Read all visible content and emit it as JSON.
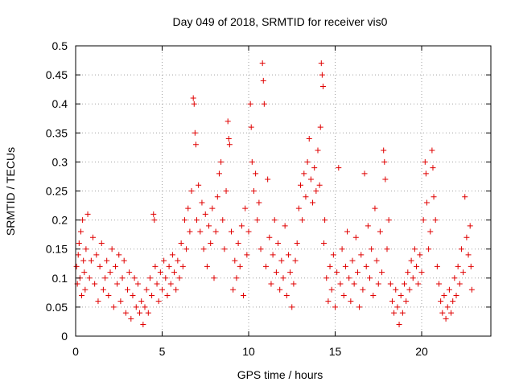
{
  "chart_data": {
    "type": "scatter",
    "title": "Day 049 of 2018, SRMTID for receiver vis0",
    "xlabel": "GPS time / hours",
    "ylabel": "SRMTID / TECUs",
    "xlim": [
      0,
      24
    ],
    "ylim": [
      0,
      0.5
    ],
    "x_ticks": [
      0,
      5,
      10,
      15,
      20
    ],
    "x_tick_labels": [
      "0",
      "5",
      "10",
      "15",
      "20"
    ],
    "y_ticks": [
      0,
      0.05,
      0.1,
      0.15,
      0.2,
      0.25,
      0.3,
      0.35,
      0.4,
      0.45,
      0.5
    ],
    "y_tick_labels": [
      "0",
      "0.05",
      "0.1",
      "0.15",
      "0.2",
      "0.25",
      "0.3",
      "0.35",
      "0.4",
      "0.45",
      "0.5"
    ],
    "grid": true,
    "marker": "+",
    "color": "#e00000",
    "series": [
      {
        "values": [
          [
            0.05,
            0.12
          ],
          [
            0.1,
            0.09
          ],
          [
            0.15,
            0.14
          ],
          [
            0.2,
            0.16
          ],
          [
            0.25,
            0.1
          ],
          [
            0.3,
            0.18
          ],
          [
            0.35,
            0.07
          ],
          [
            0.4,
            0.2
          ],
          [
            0.45,
            0.13
          ],
          [
            0.5,
            0.11
          ],
          [
            0.55,
            0.08
          ],
          [
            0.6,
            0.15
          ],
          [
            0.7,
            0.21
          ],
          [
            0.8,
            0.1
          ],
          [
            0.9,
            0.13
          ],
          [
            1.0,
            0.17
          ],
          [
            1.1,
            0.09
          ],
          [
            1.2,
            0.14
          ],
          [
            1.3,
            0.06
          ],
          [
            1.4,
            0.12
          ],
          [
            1.5,
            0.16
          ],
          [
            1.6,
            0.08
          ],
          [
            1.7,
            0.1
          ],
          [
            1.8,
            0.13
          ],
          [
            1.9,
            0.07
          ],
          [
            2.0,
            0.11
          ],
          [
            2.1,
            0.15
          ],
          [
            2.2,
            0.05
          ],
          [
            2.3,
            0.12
          ],
          [
            2.4,
            0.09
          ],
          [
            2.5,
            0.14
          ],
          [
            2.6,
            0.06
          ],
          [
            2.7,
            0.1
          ],
          [
            2.8,
            0.13
          ],
          [
            2.9,
            0.04
          ],
          [
            3.0,
            0.08
          ],
          [
            3.1,
            0.11
          ],
          [
            3.2,
            0.03
          ],
          [
            3.3,
            0.07
          ],
          [
            3.4,
            0.1
          ],
          [
            3.5,
            0.05
          ],
          [
            3.6,
            0.09
          ],
          [
            3.7,
            0.04
          ],
          [
            3.8,
            0.06
          ],
          [
            3.9,
            0.02
          ],
          [
            4.0,
            0.05
          ],
          [
            4.1,
            0.08
          ],
          [
            4.2,
            0.04
          ],
          [
            4.3,
            0.1
          ],
          [
            4.4,
            0.07
          ],
          [
            4.5,
            0.21
          ],
          [
            4.55,
            0.2
          ],
          [
            4.6,
            0.12
          ],
          [
            4.7,
            0.09
          ],
          [
            4.8,
            0.06
          ],
          [
            4.9,
            0.11
          ],
          [
            5.0,
            0.08
          ],
          [
            5.1,
            0.13
          ],
          [
            5.2,
            0.1
          ],
          [
            5.3,
            0.07
          ],
          [
            5.4,
            0.12
          ],
          [
            5.5,
            0.09
          ],
          [
            5.6,
            0.14
          ],
          [
            5.7,
            0.11
          ],
          [
            5.8,
            0.08
          ],
          [
            5.9,
            0.13
          ],
          [
            6.0,
            0.1
          ],
          [
            6.1,
            0.16
          ],
          [
            6.2,
            0.12
          ],
          [
            6.3,
            0.2
          ],
          [
            6.4,
            0.15
          ],
          [
            6.5,
            0.22
          ],
          [
            6.6,
            0.18
          ],
          [
            6.7,
            0.25
          ],
          [
            6.8,
            0.41
          ],
          [
            6.85,
            0.4
          ],
          [
            6.9,
            0.35
          ],
          [
            6.95,
            0.33
          ],
          [
            7.0,
            0.2
          ],
          [
            7.1,
            0.26
          ],
          [
            7.2,
            0.18
          ],
          [
            7.3,
            0.23
          ],
          [
            7.4,
            0.15
          ],
          [
            7.5,
            0.21
          ],
          [
            7.6,
            0.12
          ],
          [
            7.7,
            0.19
          ],
          [
            7.8,
            0.16
          ],
          [
            7.9,
            0.22
          ],
          [
            8.0,
            0.1
          ],
          [
            8.1,
            0.18
          ],
          [
            8.2,
            0.24
          ],
          [
            8.3,
            0.28
          ],
          [
            8.4,
            0.3
          ],
          [
            8.5,
            0.2
          ],
          [
            8.6,
            0.15
          ],
          [
            8.7,
            0.25
          ],
          [
            8.8,
            0.37
          ],
          [
            8.85,
            0.34
          ],
          [
            8.9,
            0.33
          ],
          [
            9.0,
            0.18
          ],
          [
            9.1,
            0.08
          ],
          [
            9.2,
            0.13
          ],
          [
            9.3,
            0.1
          ],
          [
            9.4,
            0.16
          ],
          [
            9.5,
            0.12
          ],
          [
            9.6,
            0.19
          ],
          [
            9.7,
            0.07
          ],
          [
            9.8,
            0.22
          ],
          [
            9.9,
            0.14
          ],
          [
            10.0,
            0.18
          ],
          [
            10.1,
            0.4
          ],
          [
            10.15,
            0.36
          ],
          [
            10.2,
            0.3
          ],
          [
            10.3,
            0.25
          ],
          [
            10.4,
            0.28
          ],
          [
            10.5,
            0.2
          ],
          [
            10.6,
            0.23
          ],
          [
            10.7,
            0.15
          ],
          [
            10.8,
            0.47
          ],
          [
            10.85,
            0.44
          ],
          [
            10.9,
            0.4
          ],
          [
            11.0,
            0.12
          ],
          [
            11.1,
            0.27
          ],
          [
            11.2,
            0.17
          ],
          [
            11.3,
            0.09
          ],
          [
            11.4,
            0.14
          ],
          [
            11.5,
            0.2
          ],
          [
            11.6,
            0.11
          ],
          [
            11.7,
            0.16
          ],
          [
            11.8,
            0.08
          ],
          [
            11.9,
            0.13
          ],
          [
            12.0,
            0.1
          ],
          [
            12.1,
            0.19
          ],
          [
            12.2,
            0.07
          ],
          [
            12.3,
            0.14
          ],
          [
            12.4,
            0.11
          ],
          [
            12.5,
            0.05
          ],
          [
            12.6,
            0.09
          ],
          [
            12.7,
            0.13
          ],
          [
            12.8,
            0.16
          ],
          [
            12.9,
            0.22
          ],
          [
            13.0,
            0.26
          ],
          [
            13.1,
            0.2
          ],
          [
            13.2,
            0.28
          ],
          [
            13.3,
            0.24
          ],
          [
            13.4,
            0.3
          ],
          [
            13.5,
            0.34
          ],
          [
            13.6,
            0.27
          ],
          [
            13.7,
            0.23
          ],
          [
            13.8,
            0.29
          ],
          [
            13.9,
            0.25
          ],
          [
            14.0,
            0.32
          ],
          [
            14.1,
            0.26
          ],
          [
            14.15,
            0.36
          ],
          [
            14.2,
            0.47
          ],
          [
            14.25,
            0.45
          ],
          [
            14.3,
            0.43
          ],
          [
            14.35,
            0.16
          ],
          [
            14.4,
            0.2
          ],
          [
            14.5,
            0.1
          ],
          [
            14.6,
            0.06
          ],
          [
            14.7,
            0.12
          ],
          [
            14.8,
            0.08
          ],
          [
            14.9,
            0.14
          ],
          [
            15.0,
            0.05
          ],
          [
            15.1,
            0.11
          ],
          [
            15.2,
            0.29
          ],
          [
            15.3,
            0.09
          ],
          [
            15.4,
            0.15
          ],
          [
            15.5,
            0.07
          ],
          [
            15.6,
            0.12
          ],
          [
            15.7,
            0.18
          ],
          [
            15.8,
            0.1
          ],
          [
            15.9,
            0.06
          ],
          [
            16.0,
            0.13
          ],
          [
            16.1,
            0.09
          ],
          [
            16.2,
            0.17
          ],
          [
            16.3,
            0.11
          ],
          [
            16.4,
            0.05
          ],
          [
            16.5,
            0.14
          ],
          [
            16.6,
            0.08
          ],
          [
            16.7,
            0.28
          ],
          [
            16.8,
            0.12
          ],
          [
            16.9,
            0.19
          ],
          [
            17.0,
            0.1
          ],
          [
            17.1,
            0.15
          ],
          [
            17.2,
            0.07
          ],
          [
            17.3,
            0.22
          ],
          [
            17.4,
            0.13
          ],
          [
            17.5,
            0.09
          ],
          [
            17.6,
            0.18
          ],
          [
            17.7,
            0.11
          ],
          [
            17.8,
            0.32
          ],
          [
            17.85,
            0.3
          ],
          [
            17.9,
            0.27
          ],
          [
            18.0,
            0.15
          ],
          [
            18.1,
            0.2
          ],
          [
            18.2,
            0.09
          ],
          [
            18.3,
            0.06
          ],
          [
            18.4,
            0.04
          ],
          [
            18.5,
            0.08
          ],
          [
            18.6,
            0.05
          ],
          [
            18.7,
            0.02
          ],
          [
            18.8,
            0.07
          ],
          [
            18.9,
            0.04
          ],
          [
            19.0,
            0.09
          ],
          [
            19.1,
            0.06
          ],
          [
            19.2,
            0.11
          ],
          [
            19.3,
            0.08
          ],
          [
            19.4,
            0.13
          ],
          [
            19.5,
            0.1
          ],
          [
            19.6,
            0.15
          ],
          [
            19.7,
            0.12
          ],
          [
            19.8,
            0.09
          ],
          [
            19.9,
            0.14
          ],
          [
            20.0,
            0.11
          ],
          [
            20.1,
            0.2
          ],
          [
            20.2,
            0.3
          ],
          [
            20.25,
            0.28
          ],
          [
            20.3,
            0.23
          ],
          [
            20.4,
            0.15
          ],
          [
            20.5,
            0.18
          ],
          [
            20.6,
            0.32
          ],
          [
            20.65,
            0.29
          ],
          [
            20.7,
            0.24
          ],
          [
            20.8,
            0.2
          ],
          [
            20.9,
            0.12
          ],
          [
            21.0,
            0.09
          ],
          [
            21.1,
            0.06
          ],
          [
            21.2,
            0.04
          ],
          [
            21.3,
            0.07
          ],
          [
            21.4,
            0.03
          ],
          [
            21.5,
            0.05
          ],
          [
            21.6,
            0.08
          ],
          [
            21.7,
            0.04
          ],
          [
            21.8,
            0.06
          ],
          [
            21.9,
            0.1
          ],
          [
            22.0,
            0.07
          ],
          [
            22.1,
            0.12
          ],
          [
            22.2,
            0.09
          ],
          [
            22.3,
            0.15
          ],
          [
            22.4,
            0.11
          ],
          [
            22.5,
            0.24
          ],
          [
            22.6,
            0.17
          ],
          [
            22.7,
            0.14
          ],
          [
            22.8,
            0.19
          ],
          [
            22.85,
            0.12
          ],
          [
            22.9,
            0.08
          ]
        ]
      }
    ]
  }
}
